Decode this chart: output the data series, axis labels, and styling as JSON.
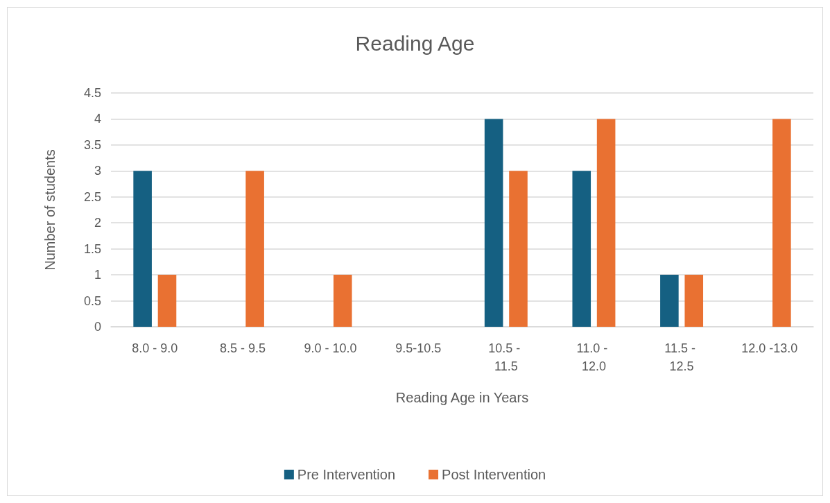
{
  "chart_data": {
    "type": "bar",
    "title": "Reading Age",
    "xlabel": "Reading Age in Years",
    "ylabel": "Number of students",
    "categories": [
      "8.0 - 9.0",
      "8.5 - 9.5",
      "9.0 - 10.0",
      "9.5-10.5",
      "10.5 - 11.5",
      "11.0 - 12.0",
      "11.5 - 12.5",
      "12.0 -13.0"
    ],
    "series": [
      {
        "name": "Pre Intervention",
        "color": "#156082",
        "values": [
          3,
          null,
          null,
          null,
          4,
          3,
          1,
          null
        ]
      },
      {
        "name": "Post Intervention",
        "color": "#e97132",
        "values": [
          1,
          3,
          1,
          null,
          3,
          4,
          1,
          4
        ]
      }
    ],
    "ylim": [
      0,
      4.5
    ],
    "yticks": [
      0,
      0.5,
      1,
      1.5,
      2,
      2.5,
      3,
      3.5,
      4,
      4.5
    ],
    "grid": "y",
    "legend": "bottom"
  }
}
